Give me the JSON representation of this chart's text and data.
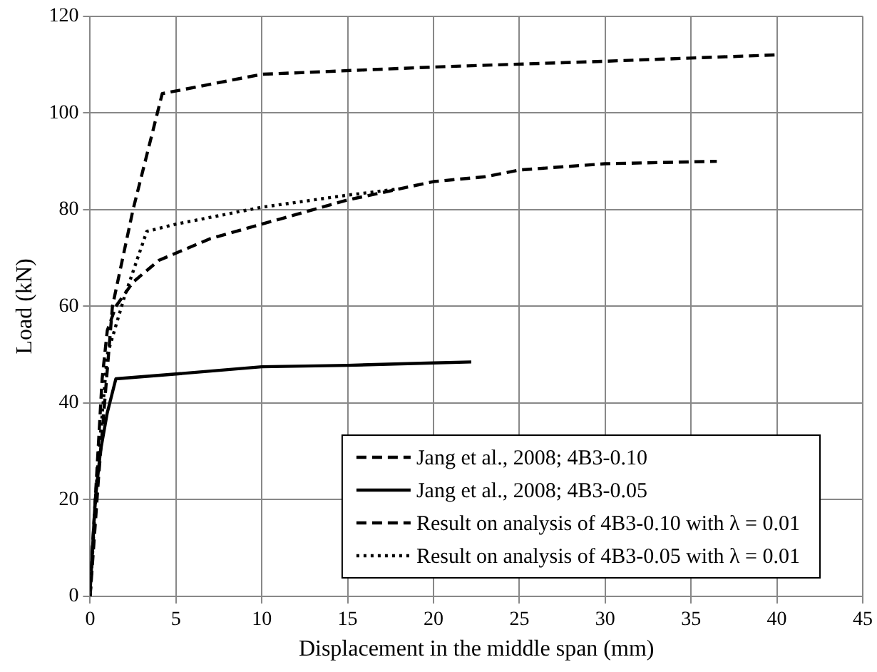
{
  "chart_data": {
    "type": "line",
    "xlabel": "Displacement in the middle span (mm)",
    "ylabel": "Load (kN)",
    "xlim": [
      0,
      45
    ],
    "xticks": [
      0,
      5,
      10,
      15,
      20,
      25,
      30,
      35,
      40,
      45
    ],
    "ylim": [
      0,
      120
    ],
    "yticks": [
      0,
      20,
      40,
      60,
      80,
      100,
      120
    ],
    "grid": true,
    "legend": "bottom right",
    "marker": "none",
    "series": [
      {
        "name": "Jang et al., 2008; 4B3-0.10",
        "color": "#000000",
        "line_style": "dashed",
        "x": [
          0,
          0.3,
          0.7,
          1,
          1.5,
          2.5,
          4,
          7,
          10,
          15,
          20,
          23,
          25,
          30,
          36.5
        ],
        "values": [
          2,
          20,
          45,
          55,
          60,
          65,
          69.5,
          74,
          77,
          82,
          85.8,
          86.8,
          88.2,
          89.5,
          90
        ]
      },
      {
        "name": "Jang et al., 2008; 4B3-0.05",
        "color": "#000000",
        "line_style": "solid",
        "x": [
          0,
          0.3,
          0.6,
          1,
          1.5,
          5,
          10,
          15,
          20,
          22.2
        ],
        "values": [
          1,
          20,
          30,
          38,
          45,
          46,
          47.5,
          47.8,
          48.3,
          48.5
        ]
      },
      {
        "name": "Result on analysis of 4B3-0.10 with λ = 0.01",
        "color": "#000000",
        "line_style": "dashed",
        "x": [
          0,
          0.5,
          1.3,
          2.5,
          4.2,
          10,
          20,
          30,
          39.9
        ],
        "values": [
          0,
          25,
          60,
          80,
          104,
          108,
          109.5,
          110.7,
          112
        ]
      },
      {
        "name": "Result on analysis of 4B3-0.05 with λ = 0.01",
        "color": "#000000",
        "line_style": "dotted",
        "x": [
          0,
          0.4,
          1,
          2,
          3.3,
          5,
          10,
          15,
          18
        ],
        "values": [
          0,
          25,
          50,
          62,
          75.5,
          77,
          80.5,
          83,
          84.3
        ]
      }
    ]
  }
}
